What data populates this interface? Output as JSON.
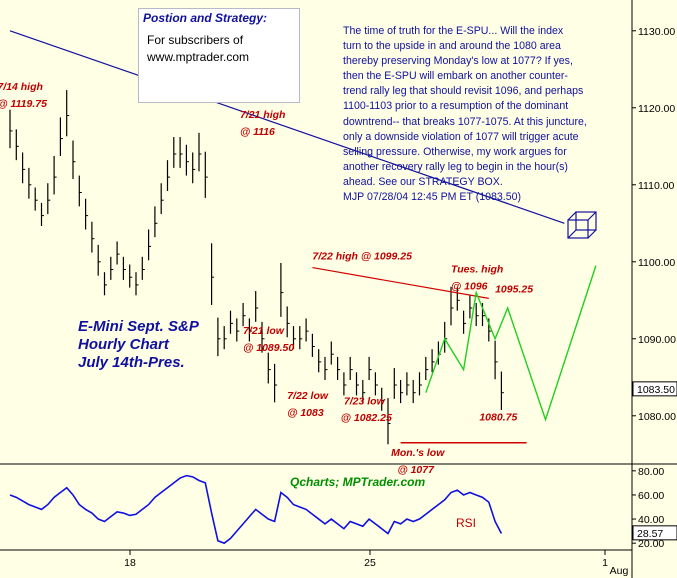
{
  "strategy": {
    "title": "Postion and Strategy:",
    "line1": "For subscribers of",
    "line2": "www.mptrader.com"
  },
  "commentary": "The time of truth for the E-SPU... Will the index\nturn to the upside in and around the 1080 area\nthereby preserving Monday's low at 1077? If yes,\nthen the E-SPU will embark on another counter-\ntrend rally leg that should revisit 1096, and perhaps\n1100-1103 prior to a resumption of the dominant\ndowntrend-- that breaks 1077-1075. At this juncture,\nonly a downside violation of 1077 will trigger acute\nselling pressure. Otherwise, my work argues for\nanother recovery rally leg to begin in the hour(s)\nahead. See our STRATEGY BOX.\nMJP 07/28/04 12:45 PM ET (1083.50)",
  "chart_label": "E-Mini Sept. S&P\nHourly Chart\nJuly 14th-Pres.",
  "brand": "Qcharts; MPTrader.com",
  "colors": {
    "background": "#ffffe6",
    "bars": "#000000",
    "trendline": "#1010a0",
    "resistance": "#d00000",
    "projection": "#20d020",
    "rsi": "#1010e0"
  },
  "chart_data": [
    {
      "type": "bar",
      "ylim": [
        1074,
        1134
      ],
      "yticks": [
        1080,
        1090,
        1100,
        1110,
        1120,
        1130
      ],
      "ytick_labels": [
        "1080.00",
        "1090.00",
        "1100.00",
        "1110.00",
        "1120.00",
        "1130.00"
      ],
      "x_categories": [
        "18",
        "25",
        "1",
        "Aug"
      ],
      "last_price": "1083.50",
      "closes": [
        1117,
        1115,
        1112,
        1110,
        1108,
        1106,
        1108,
        1111,
        1116,
        1119,
        1113,
        1109,
        1106,
        1103,
        1100,
        1097,
        1099,
        1101,
        1099,
        1098,
        1097,
        1099,
        1102,
        1105,
        1108,
        1111,
        1114,
        1114,
        1113,
        1112,
        1114,
        1111,
        1098,
        1090,
        1090,
        1092,
        1091,
        1093,
        1091,
        1094,
        1090,
        1086,
        1084,
        1096,
        1092,
        1090,
        1090,
        1091,
        1089,
        1087,
        1086,
        1088,
        1086,
        1084,
        1086,
        1084,
        1083,
        1086,
        1084,
        1082,
        1079,
        1084,
        1083,
        1084,
        1083,
        1084,
        1086,
        1087,
        1088,
        1090,
        1094,
        1095,
        1092,
        1094,
        1093,
        1093,
        1091,
        1087,
        1083
      ],
      "ranges": [
        5,
        4,
        4,
        4,
        3,
        3,
        4,
        5,
        5,
        6,
        5,
        4,
        4,
        4,
        4,
        3,
        3,
        3,
        3,
        3,
        3,
        3,
        4,
        4,
        4,
        4,
        4,
        4,
        4,
        4,
        5,
        6,
        8,
        5,
        3,
        3,
        3,
        3,
        3,
        4,
        4,
        4,
        5,
        7,
        4,
        3,
        3,
        3,
        3,
        3,
        3,
        3,
        3,
        3,
        3,
        3,
        3,
        3,
        3,
        3,
        6,
        4,
        3,
        3,
        3,
        3,
        3,
        3,
        3,
        4,
        5,
        3,
        3,
        3,
        3,
        3,
        3,
        5,
        5
      ],
      "trendline": {
        "from": [
          0,
          1130
        ],
        "to": [
          88,
          1105
        ]
      },
      "resistance_line": {
        "from": [
          48,
          1099.25
        ],
        "to": [
          76,
          1095.25
        ]
      },
      "support_line": {
        "from": [
          62,
          1076.5
        ],
        "to": [
          82,
          1076.5
        ]
      },
      "projection_line": [
        [
          66,
          1083
        ],
        [
          69,
          1090
        ],
        [
          72,
          1086
        ],
        [
          74,
          1096
        ],
        [
          77,
          1090
        ],
        [
          79,
          1094
        ],
        [
          85,
          1079.5
        ],
        [
          93,
          1099.5
        ]
      ],
      "annotations": [
        {
          "text": "7/14 high",
          "x": -2,
          "y": 1122.3
        },
        {
          "text": "@ 1119.75",
          "x": -2,
          "y": 1120.1
        },
        {
          "text": "7/21 high",
          "x": 36.5,
          "y": 1118.7
        },
        {
          "text": "@ 1116",
          "x": 36.5,
          "y": 1116.5
        },
        {
          "text": "7/22 high @ 1099.25",
          "x": 48,
          "y": 1100.3
        },
        {
          "text": "Tues. high",
          "x": 70,
          "y": 1098.6
        },
        {
          "text": "@ 1096",
          "x": 70,
          "y": 1096.4
        },
        {
          "text": "1095.25",
          "x": 77,
          "y": 1096.0
        },
        {
          "text": "7/21 low",
          "x": 37,
          "y": 1090.6
        },
        {
          "text": "@ 1089.50",
          "x": 37,
          "y": 1088.4
        },
        {
          "text": "7/22 low",
          "x": 44,
          "y": 1082.2
        },
        {
          "text": "@ 1083",
          "x": 44,
          "y": 1080.0
        },
        {
          "text": "7/23 low",
          "x": 53,
          "y": 1081.5
        },
        {
          "text": "@ 1082.25",
          "x": 52.5,
          "y": 1079.3
        },
        {
          "text": "1080.75",
          "x": 74.5,
          "y": 1079.4
        },
        {
          "text": "Mon.'s low",
          "x": 60.5,
          "y": 1074.8
        },
        {
          "text": "@ 1077",
          "x": 61.5,
          "y": 1072.6
        }
      ]
    },
    {
      "type": "line",
      "title": "RSI",
      "ylim": [
        16,
        84
      ],
      "yticks": [
        20,
        40,
        60,
        80
      ],
      "ytick_labels": [
        "20.00",
        "40.00",
        "60.00",
        "80.00"
      ],
      "last_value": "28.57",
      "values": [
        60,
        58,
        55,
        52,
        50,
        48,
        52,
        58,
        62,
        66,
        60,
        52,
        48,
        45,
        40,
        38,
        42,
        46,
        45,
        43,
        44,
        48,
        52,
        58,
        62,
        66,
        70,
        74,
        76,
        75,
        72,
        70,
        45,
        22,
        20,
        24,
        30,
        36,
        42,
        48,
        44,
        40,
        38,
        62,
        58,
        52,
        50,
        48,
        44,
        40,
        36,
        40,
        36,
        32,
        38,
        36,
        34,
        40,
        36,
        32,
        28,
        38,
        36,
        40,
        38,
        40,
        44,
        48,
        52,
        56,
        62,
        64,
        60,
        62,
        60,
        58,
        54,
        38,
        28
      ]
    }
  ]
}
